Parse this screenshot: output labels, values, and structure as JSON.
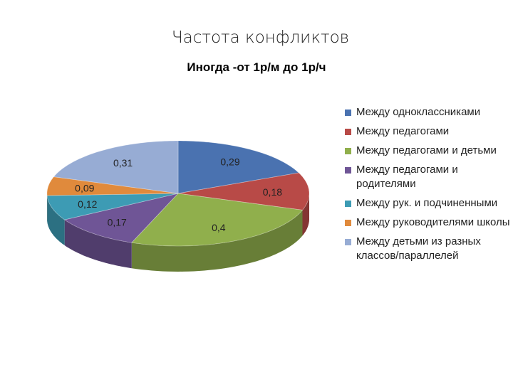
{
  "page": {
    "title": "Частота конфликтов"
  },
  "chart_data": {
    "type": "pie",
    "title": "Иногда -от 1р/м до 1р/ч",
    "legend_position": "right",
    "three_d": true,
    "slices": [
      {
        "label": "Между одноклассниками",
        "value": 0.29,
        "value_label": "0,29",
        "color": "#4a72b0"
      },
      {
        "label": "Между педагогами",
        "value": 0.18,
        "value_label": "0,18",
        "color": "#b84a47"
      },
      {
        "label": "Между педагогами и детьми",
        "value": 0.4,
        "value_label": "0,4",
        "color": "#90af4c"
      },
      {
        "label": "Между педагогами и родителями",
        "value": 0.17,
        "value_label": "0,17",
        "color": "#6f5596"
      },
      {
        "label": "Между рук. и подчиненными",
        "value": 0.12,
        "value_label": "0,12",
        "color": "#3d9bb4"
      },
      {
        "label": "Между руководителями школы",
        "value": 0.09,
        "value_label": "0,09",
        "color": "#e08a3c"
      },
      {
        "label": "Между детьми из разных классов/параллелей",
        "value": 0.31,
        "value_label": "0,31",
        "color": "#97acd4"
      }
    ]
  }
}
